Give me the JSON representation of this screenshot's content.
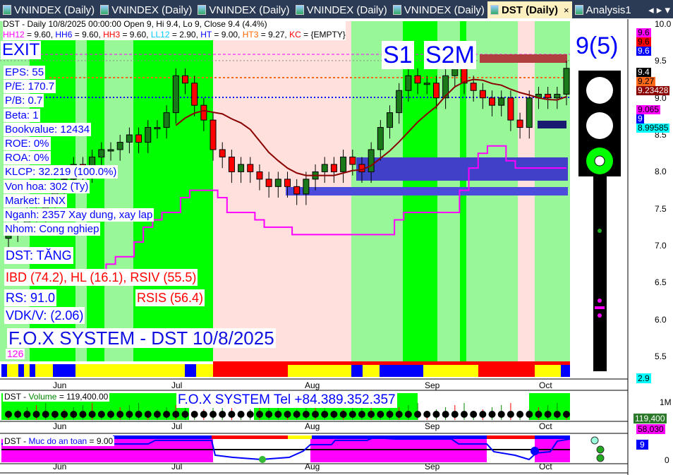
{
  "tabs": [
    {
      "label": "VNINDEX (Daily)"
    },
    {
      "label": "VNINDEX (Daily)"
    },
    {
      "label": "VNINDEX (Daily)"
    },
    {
      "label": "VNINDEX (Daily)"
    },
    {
      "label": "VNINDEX (Daily)"
    },
    {
      "label": "DST (Daily)",
      "active": true,
      "close": "×"
    },
    {
      "label": "Analysis1"
    }
  ],
  "tab_scroll": "◂ ▸ ▾",
  "header": {
    "line1": "DST - Daily 10/8/2025 00:00:00 Open 9, Hi 9.4, Lo 9, Close 9.4 (4.4%)",
    "line2": [
      {
        "t": "HH12",
        "c": "#ff00ff"
      },
      {
        "t": " = 9.60, ",
        "c": "#000"
      },
      {
        "t": "HH6",
        "c": "#0000ff"
      },
      {
        "t": " = 9.60, ",
        "c": "#000"
      },
      {
        "t": "HH3",
        "c": "#ff0000"
      },
      {
        "t": " = 9.60, ",
        "c": "#000"
      },
      {
        "t": "LL12",
        "c": "#00c8ff"
      },
      {
        "t": " = 2.90, ",
        "c": "#000"
      },
      {
        "t": "HT",
        "c": "#0000ff"
      },
      {
        "t": "  = 9.00, ",
        "c": "#000"
      },
      {
        "t": "HT3",
        "c": "#ff6600"
      },
      {
        "t": "  = 9.27, ",
        "c": "#000"
      },
      {
        "t": "KC",
        "c": "#ff0000"
      },
      {
        "t": " = {EMPTY}",
        "c": "#000"
      }
    ]
  },
  "signal": "EXIT",
  "fundamentals": [
    "EPS: 55",
    "P/E: 170.7",
    "P/B: 0.7",
    "Beta: 1",
    "Bookvalue: 12434",
    "ROE: 0%",
    "ROA: 0%",
    "KLCP: 32.219 (100.0%)",
    "Von hoa: 302 (Ty)",
    "Market: HNX",
    "Nganh: 2357 Xay dung, xay lap",
    "Nhom: Cong nghiep"
  ],
  "trend": "DST: TĂNG",
  "indicators": "IBD (74.2), HL (16.1), RSIV (55.5)",
  "rs": "RS: 91.0",
  "rsis": "RSIS (56.4)",
  "vdk": "VDK/V:  (2.06)",
  "system_title": "F.O.X SYSTEM - DST 10/8/2025",
  "count": "126",
  "s1": "S1",
  "s2m": "S2M",
  "score": "9(5)",
  "price_axis": [
    "10.0",
    "9.5",
    "9.0",
    "8.5",
    "8.0",
    "7.5",
    "7.0",
    "6.5",
    "6.0",
    "5.5"
  ],
  "price_tags": [
    {
      "v": "9.6",
      "bg": "#ff00ff",
      "fg": "#000"
    },
    {
      "v": "9.6",
      "bg": "#ff0000",
      "fg": "#000"
    },
    {
      "v": "9.6",
      "bg": "#0000ff",
      "fg": "#fff"
    },
    {
      "v": "9.4",
      "bg": "#000000",
      "fg": "#fff"
    },
    {
      "v": "9.27",
      "bg": "#ff6a1a",
      "fg": "#000"
    },
    {
      "v": "9.23428",
      "bg": "#8b0000",
      "fg": "#fff"
    },
    {
      "v": "9.065",
      "bg": "#ff00ff",
      "fg": "#000"
    },
    {
      "v": "9",
      "bg": "#0000ff",
      "fg": "#fff"
    },
    {
      "v": "8.99585",
      "bg": "#00ffff",
      "fg": "#000"
    }
  ],
  "low_tag": "2.9",
  "months": [
    "Jun",
    "Jul",
    "Aug",
    "Sep",
    "Oct"
  ],
  "volume": {
    "title_prefix": "DST - ",
    "title_name": "Volume",
    "title_value": " = 119,400.00",
    "axis": "1M",
    "last": "119,400",
    "avg": "58,030",
    "banner": "F.O.X SYSTEM Tel +84.389.352.357"
  },
  "safety": {
    "title_prefix": "DST - ",
    "title_name": "Muc do an toan",
    "title_value": " = 9.00",
    "last": "9",
    "axis": "0"
  },
  "chart_data": {
    "type": "candlestick",
    "ylim": [
      5.5,
      10.0
    ],
    "closes": [
      7.2,
      7.3,
      7.5,
      7.4,
      7.6,
      7.8,
      7.9,
      8.1,
      8.0,
      8.2,
      8.3,
      8.3,
      8.4,
      8.5,
      8.4,
      8.6,
      8.6,
      8.8,
      9.3,
      9.2,
      8.9,
      8.7,
      8.3,
      8.2,
      8.0,
      8.1,
      8.0,
      7.9,
      7.8,
      7.9,
      7.8,
      7.7,
      7.9,
      8.0,
      8.1,
      8.0,
      8.2,
      8.1,
      8.0,
      8.3,
      8.6,
      8.8,
      9.1,
      9.3,
      9.2,
      9.2,
      9.0,
      9.3,
      9.4,
      9.2,
      9.1,
      9.0,
      8.9,
      9.0,
      8.7,
      8.6,
      9.0,
      9.05,
      9.0,
      9.05,
      9.4
    ]
  },
  "colors": {
    "green": "#00ff00",
    "light_green": "#98f898",
    "pink": "#ffe0dc",
    "up": "#1a7a1a",
    "down": "#ff0000"
  }
}
